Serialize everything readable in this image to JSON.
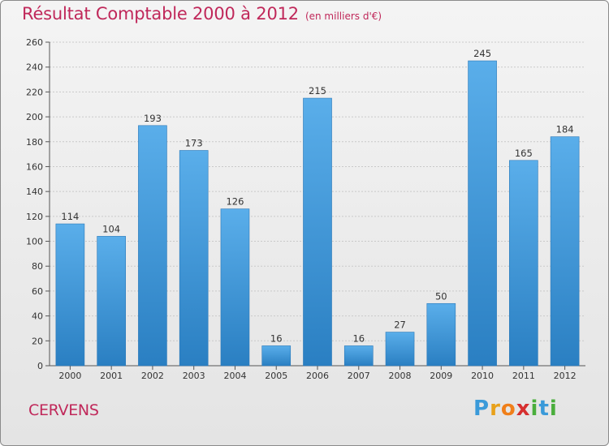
{
  "header": {
    "title": "Résultat Comptable 2000 à 2012",
    "subtitle": "(en milliers d'€)"
  },
  "footer": {
    "commune": "CERVENS",
    "brand_letters": [
      "P",
      "r",
      "o",
      "x",
      "i",
      "t",
      "i"
    ],
    "brand_colors": [
      "#3a9ad9",
      "#e8a11a",
      "#f07f1a",
      "#d62f2f",
      "#4aae3c",
      "#3a9ad9",
      "#4aae3c"
    ]
  },
  "colors": {
    "accent": "#c0285a",
    "bar_top": "#5aaeea",
    "bar_bottom": "#2a7fc2"
  },
  "chart_data": {
    "type": "bar",
    "categories": [
      "2000",
      "2001",
      "2002",
      "2003",
      "2004",
      "2005",
      "2006",
      "2007",
      "2008",
      "2009",
      "2010",
      "2011",
      "2012"
    ],
    "values": [
      114,
      104,
      193,
      173,
      126,
      16,
      215,
      16,
      27,
      50,
      245,
      165,
      184
    ],
    "title": "Résultat Comptable 2000 à 2012",
    "subtitle": "(en milliers d'€)",
    "xlabel": "",
    "ylabel": "",
    "ylim": [
      0,
      260
    ],
    "yticks": [
      0,
      20,
      40,
      60,
      80,
      100,
      120,
      140,
      160,
      180,
      200,
      220,
      240,
      260
    ],
    "grid": true,
    "legend": "none"
  }
}
